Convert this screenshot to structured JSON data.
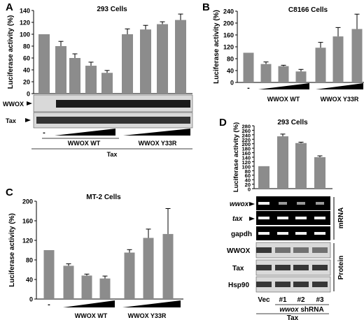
{
  "colors": {
    "bar": "#8c8c8c",
    "axis": "#000000",
    "blot_bg": "#d9d9d9",
    "gel_bg": "#000000"
  },
  "chart_data": [
    {
      "panel_letter": "A",
      "type": "bar",
      "title": "293 Cells",
      "ylabel": "Luciferase activity (%)",
      "ylim": [
        0,
        140
      ],
      "yticks": [
        0,
        20,
        40,
        60,
        80,
        100,
        120,
        140
      ],
      "values": [
        100,
        80,
        60,
        47,
        35,
        100,
        108,
        117,
        124
      ],
      "errors": [
        0,
        8,
        7,
        6,
        4,
        9,
        7,
        4,
        10
      ],
      "blot_labels": [
        "WWOX",
        "Tax"
      ],
      "dash_label": "-",
      "group_labels": [
        "WWOX WT",
        "WWOX Y33R"
      ],
      "bottom_label": "Tax",
      "grid": false
    },
    {
      "panel_letter": "B",
      "type": "bar",
      "title": "C8166 Cells",
      "ylabel": "Luciferase activity (%)",
      "ylim": [
        0,
        240
      ],
      "yticks": [
        0,
        40,
        80,
        120,
        160,
        200,
        240
      ],
      "values": [
        100,
        62,
        55,
        37,
        117,
        155,
        180
      ],
      "errors": [
        0,
        7,
        3,
        7,
        18,
        30,
        50
      ],
      "dash_label": "-",
      "group_labels": [
        "WWOX WT",
        "WWOX Y33R"
      ],
      "grid": false
    },
    {
      "panel_letter": "C",
      "type": "bar",
      "title": "MT-2 Cells",
      "ylabel": "Luciferase activity (%)",
      "ylim": [
        0,
        200
      ],
      "yticks": [
        0,
        40,
        80,
        120,
        160,
        200
      ],
      "values": [
        100,
        68,
        48,
        42,
        95,
        125,
        133
      ],
      "errors": [
        0,
        4,
        3,
        5,
        6,
        18,
        52
      ],
      "dash_label": "-",
      "group_labels": [
        "WWOX WT",
        "WWOX Y33R"
      ],
      "grid": false
    },
    {
      "panel_letter": "D",
      "type": "bar",
      "title": "293 Cells",
      "ylabel": "Luciferase activity (%)",
      "ylim": [
        0,
        280
      ],
      "yticks": [
        0,
        20,
        40,
        60,
        80,
        100,
        120,
        140,
        160,
        180,
        200,
        220,
        240,
        260,
        280
      ],
      "categories": [
        "Vec",
        "#1",
        "#2",
        "#3"
      ],
      "values": [
        100,
        233,
        203,
        140
      ],
      "errors": [
        0,
        10,
        4,
        6
      ],
      "mrna_labels": [
        "wwox",
        "tax",
        "gapdh"
      ],
      "protein_labels": [
        "WWOX",
        "Tax",
        "Hsp90"
      ],
      "side_labels": [
        "mRNA",
        "Protein"
      ],
      "shrna_label_italic": "wwox",
      "shrna_label_rest": " shRNA",
      "bottom_label": "Tax",
      "grid": false
    }
  ]
}
